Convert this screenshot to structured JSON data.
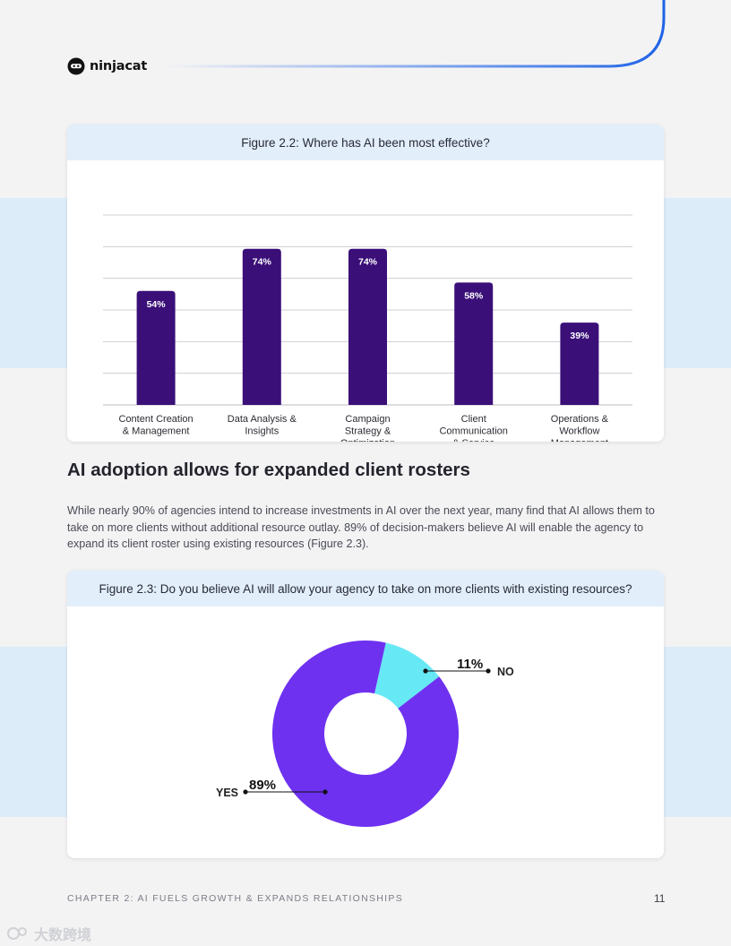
{
  "brand": {
    "name": "ninjacat",
    "accent": "#1f63e6"
  },
  "figure_2_2": {
    "caption": "Figure 2.2: Where has AI been most effective?",
    "chart_data": {
      "type": "bar",
      "title": "Figure 2.2: Where has AI been most effective?",
      "categories": [
        [
          "Content Creation",
          "& Management"
        ],
        [
          "Data Analysis &",
          "Insights"
        ],
        [
          "Campaign",
          "Strategy &",
          "Optimization"
        ],
        [
          "Client",
          "Communication",
          "& Service"
        ],
        [
          "Operations &",
          "Workflow",
          "Management"
        ]
      ],
      "values": [
        54,
        74,
        74,
        58,
        39
      ],
      "value_labels": [
        "54%",
        "74%",
        "74%",
        "58%",
        "39%"
      ],
      "ylim": [
        0,
        90
      ],
      "grid": true,
      "bar_color": "#3a0f78",
      "value_label_color": "#ffffff"
    }
  },
  "section": {
    "title": "AI adoption allows for expanded client rosters",
    "body": "While nearly 90% of agencies intend to increase investments in AI over the next year, many find that AI allows them to take on more clients without additional resource outlay. 89% of decision-makers believe AI will enable the agency to expand its client roster using existing resources (Figure 2.3)."
  },
  "figure_2_3": {
    "caption": "Figure 2.3: Do you believe AI will allow your agency to take on more clients with existing resources?",
    "chart_data": {
      "type": "pie",
      "title": "Figure 2.3: Do you believe AI will allow your agency to take on more clients with existing resources?",
      "slices": [
        {
          "label": "YES",
          "value": 89,
          "value_label": "89%",
          "color": "#6e31f0"
        },
        {
          "label": "NO",
          "value": 11,
          "value_label": "11%",
          "color": "#67e8f5"
        }
      ],
      "donut": true
    }
  },
  "footer": {
    "chapter": "CHAPTER 2: AI FUELS GROWTH & EXPANDS RELATIONSHIPS",
    "page_number": "11"
  },
  "watermark": {
    "text": "大数跨境"
  }
}
